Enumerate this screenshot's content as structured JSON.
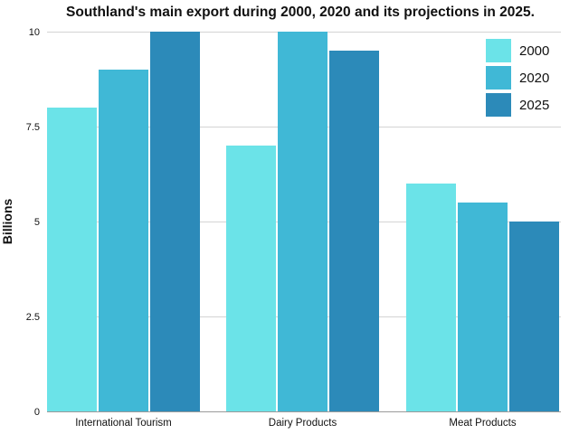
{
  "chart_data": {
    "type": "bar",
    "title": "Southland's main export during 2000, 2020 and its projections in 2025.",
    "xlabel": "",
    "ylabel": "Billions",
    "categories": [
      "International Tourism",
      "Dairy Products",
      "Meat Products"
    ],
    "series": [
      {
        "name": "2000",
        "values": [
          8,
          7,
          6
        ],
        "color": "#6be3e8"
      },
      {
        "name": "2020",
        "values": [
          9,
          10,
          5.5
        ],
        "color": "#40b8d6"
      },
      {
        "name": "2025",
        "values": [
          10,
          9.5,
          5
        ],
        "color": "#2c8ab9"
      }
    ],
    "ylim": [
      0,
      10
    ],
    "yticks": [
      0,
      2.5,
      5,
      7.5,
      10
    ],
    "ytick_labels": [
      "0",
      "2.5",
      "5",
      "7.5",
      "10"
    ],
    "grid": true,
    "legend_position": "top-right"
  }
}
